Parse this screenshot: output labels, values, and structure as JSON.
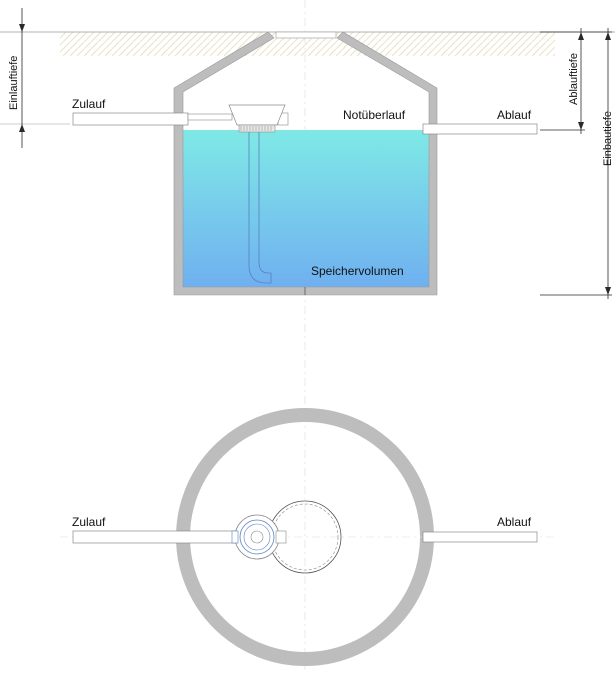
{
  "section": {
    "inlet_label": "Zulauf",
    "outlet_label": "Ablauf",
    "overflow_label": "Notüberlauf",
    "storage_label": "Speichervolumen",
    "dim_inlet_depth": "Einlauftiefe",
    "dim_outlet_depth": "Ablauftiefe",
    "dim_install_depth": "Einbautiefe"
  },
  "plan": {
    "inlet_label": "Zulauf",
    "outlet_label": "Ablauf"
  },
  "colors": {
    "concrete": "#bdbdbd",
    "water_top": "#7fe9e6",
    "water_bottom": "#6fb0f0",
    "soil_hatch": "#e8e2c8",
    "pipe_stroke": "#8a8a8a",
    "line": "#2a2a2a"
  }
}
